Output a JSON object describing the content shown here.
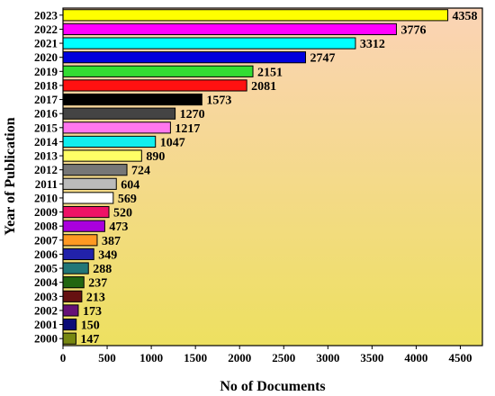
{
  "chart_data": {
    "type": "bar",
    "orientation": "horizontal",
    "xlabel": "No of Documents",
    "ylabel": "Year of Publication",
    "xlim": [
      0,
      4750
    ],
    "xticks": [
      "0",
      "500",
      "1000",
      "1500",
      "2000",
      "2500",
      "3000",
      "3500",
      "4000",
      "4500"
    ],
    "grid": false,
    "background_gradient": [
      "#fbd3b6",
      "#ede060"
    ],
    "categories": [
      "2023",
      "2022",
      "2021",
      "2020",
      "2019",
      "2018",
      "2017",
      "2016",
      "2015",
      "2014",
      "2013",
      "2012",
      "2011",
      "2010",
      "2009",
      "2008",
      "2007",
      "2006",
      "2005",
      "2004",
      "2003",
      "2002",
      "2001",
      "2000"
    ],
    "values": [
      4358,
      3776,
      3312,
      2747,
      2151,
      2081,
      1573,
      1270,
      1217,
      1047,
      890,
      724,
      604,
      569,
      520,
      473,
      387,
      349,
      288,
      237,
      213,
      173,
      150,
      147
    ],
    "colors": [
      "#ffff00",
      "#ff00ff",
      "#00ffff",
      "#0000dd",
      "#33dd33",
      "#ff1111",
      "#000000",
      "#444444",
      "#ff77ee",
      "#11eeee",
      "#ffff66",
      "#777777",
      "#bbbbbb",
      "#ffffff",
      "#ee1166",
      "#aa00dd",
      "#ff9922",
      "#2222aa",
      "#227777",
      "#226611",
      "#661111",
      "#661177",
      "#0c0c77",
      "#778811"
    ]
  }
}
